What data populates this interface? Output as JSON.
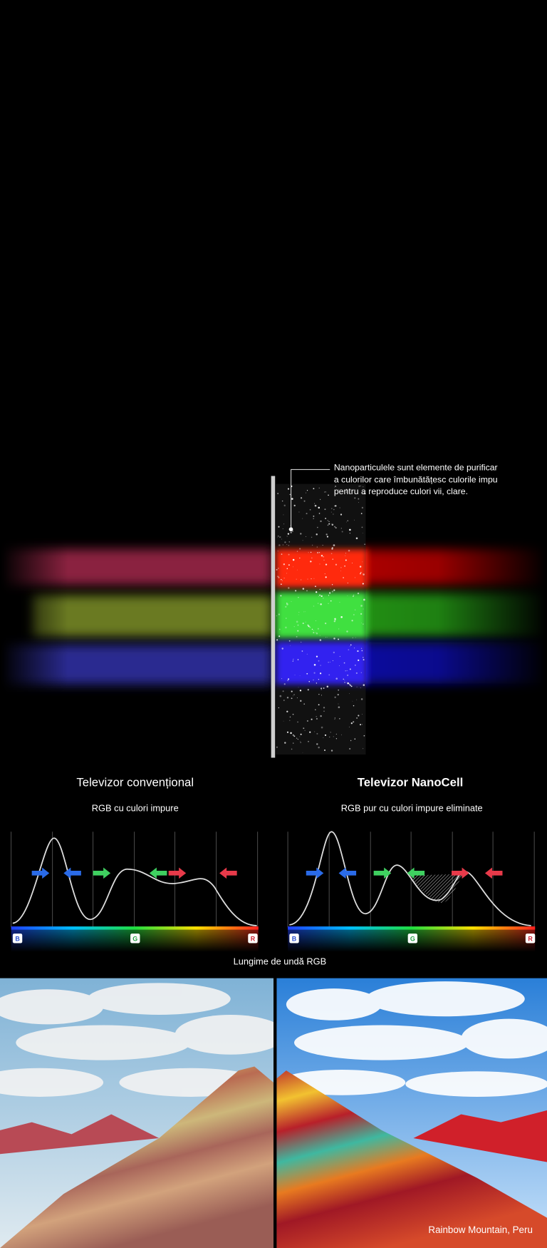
{
  "callout": {
    "lines": [
      "Nanoparticulele sunt elemente de purificar",
      "a culorilor care îmbunătățesc culorile impu",
      "pentru a reproduce culori vii, clare."
    ]
  },
  "left": {
    "title": "Televizor convențional",
    "subtitle": "RGB cu culori impure"
  },
  "right": {
    "title": "Televizor NanoCell",
    "subtitle": "RGB pur cu culori impure eliminate"
  },
  "axis": {
    "labels": [
      "B",
      "G",
      "R"
    ],
    "title": "Lungime de undă RGB"
  },
  "caption": "Rainbow Mountain, Peru"
}
